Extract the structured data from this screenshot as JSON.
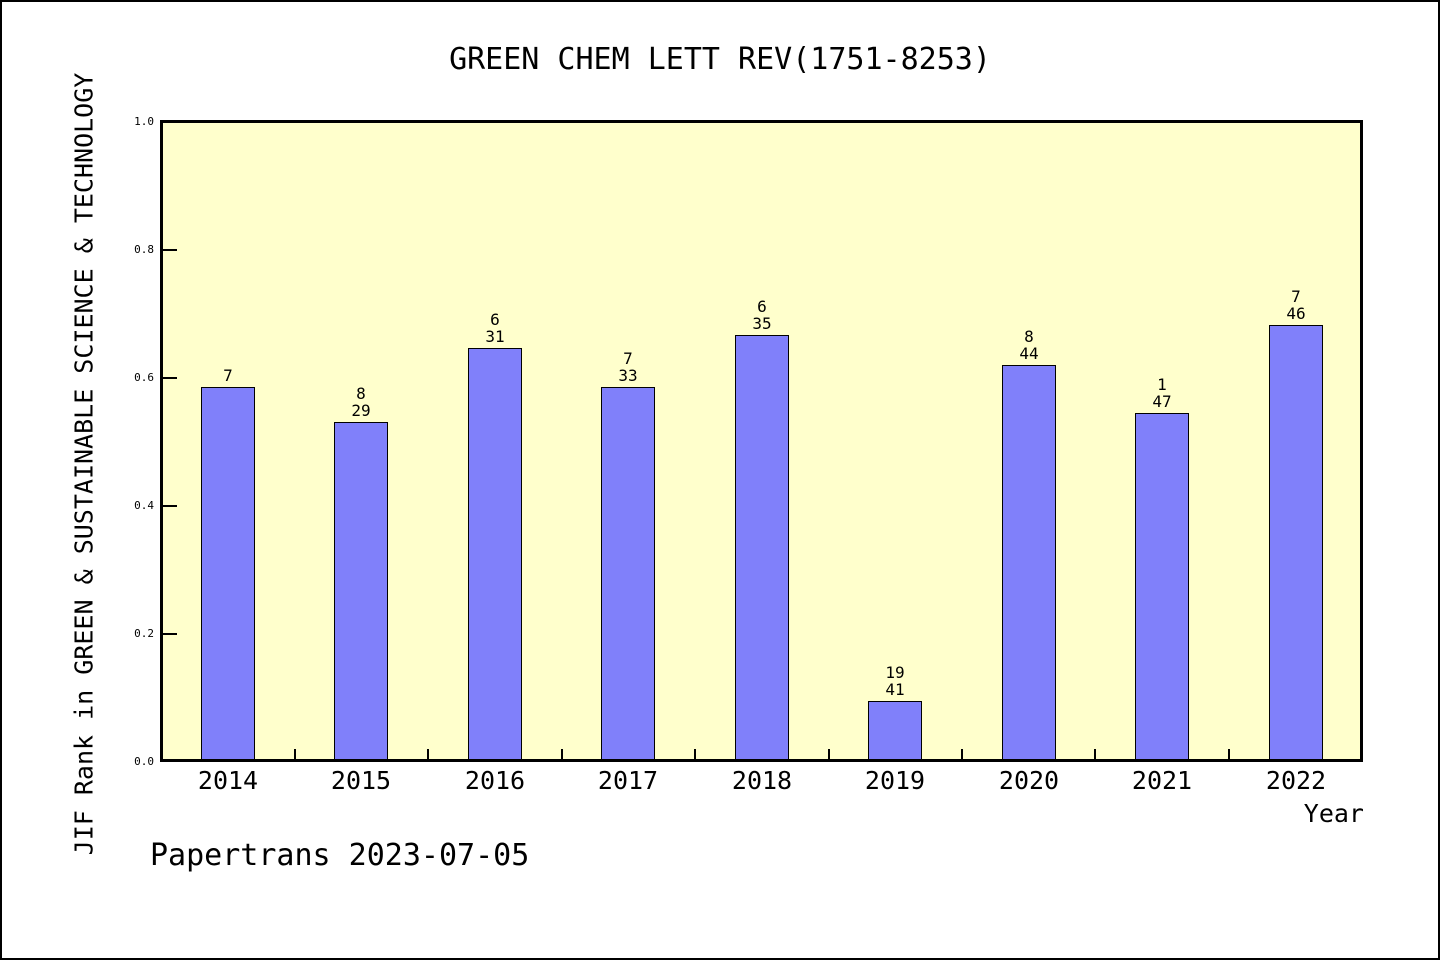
{
  "footer": {
    "watermark": "Papertrans 2023-07-05"
  },
  "chart_data": {
    "type": "bar",
    "title": "GREEN CHEM LETT REV(1751-8253)",
    "xlabel": "Year",
    "ylabel": "JIF Rank in GREEN & SUSTAINABLE SCIENCE & TECHNOLOGY",
    "categories": [
      "2014",
      "2015",
      "2016",
      "2017",
      "2018",
      "2019",
      "2020",
      "2021",
      "2022"
    ],
    "values": [
      0.586,
      0.531,
      0.647,
      0.586,
      0.667,
      0.095,
      0.62,
      0.545,
      0.683
    ],
    "bar_labels": [
      [
        "7"
      ],
      [
        "8",
        "29"
      ],
      [
        "6",
        "31"
      ],
      [
        "7",
        "33"
      ],
      [
        "6",
        "35"
      ],
      [
        "19",
        "41"
      ],
      [
        "8",
        "44"
      ],
      [
        "1",
        "47"
      ],
      [
        "7",
        "46"
      ]
    ],
    "ylim": [
      0.0,
      1.0
    ],
    "yticks": [
      "0.0",
      "0.2",
      "0.4",
      "0.6",
      "0.8",
      "1.0"
    ],
    "grid": false,
    "legend": "none",
    "colors": {
      "bar_fill": "#8080FA",
      "bar_border": "#000000",
      "plot_bg": "#FFFFCC",
      "page_bg": "#FFFFFF",
      "text": "#000000"
    }
  }
}
